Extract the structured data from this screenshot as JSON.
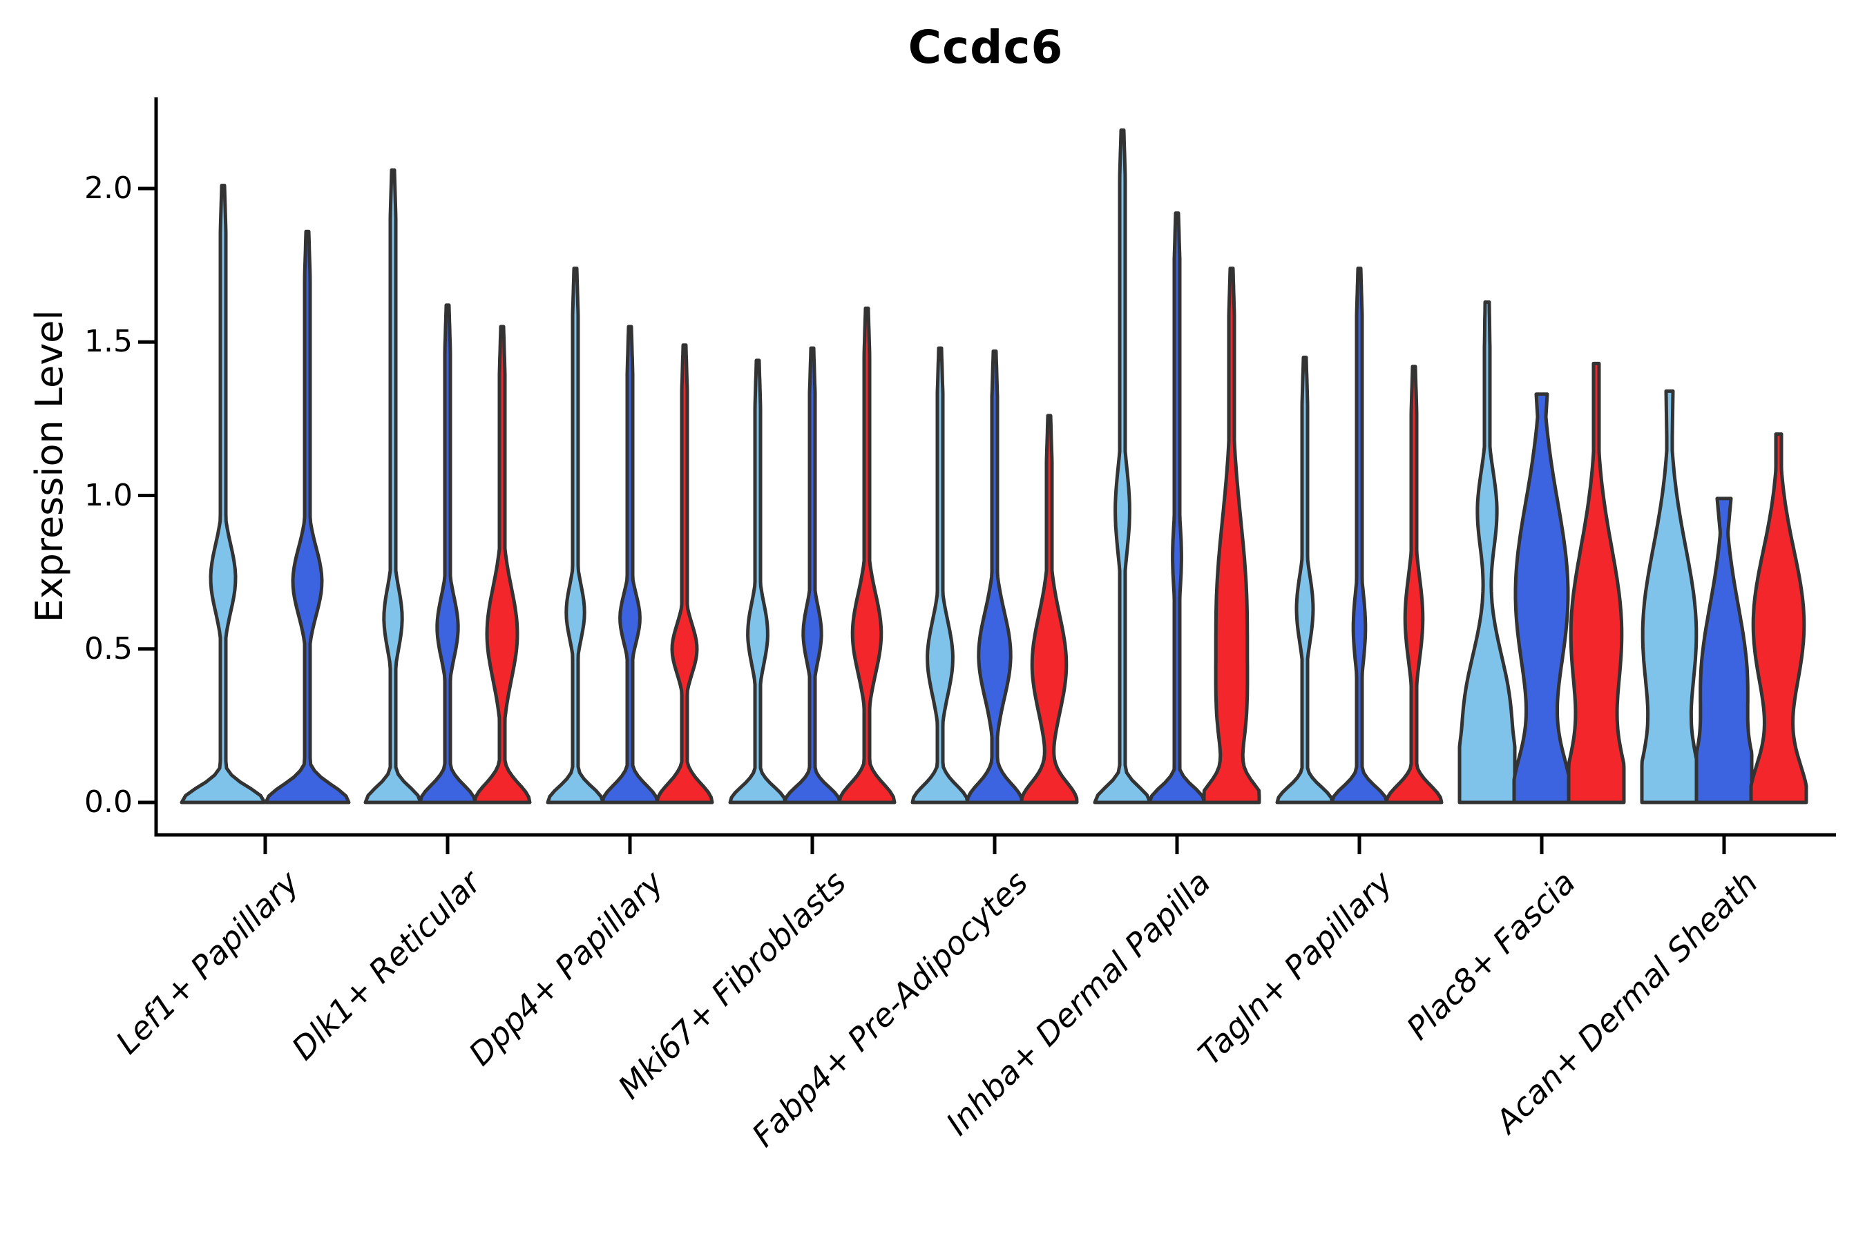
{
  "chart_data": {
    "type": "violin",
    "title": "Ccdc6",
    "ylabel": "Expression Level",
    "xlabel": "",
    "y_ticks": [
      "0.0",
      "0.5",
      "1.0",
      "1.5",
      "2.0"
    ],
    "y_tick_values": [
      0.0,
      0.5,
      1.0,
      1.5,
      2.0
    ],
    "ylim": [
      -0.11,
      2.3
    ],
    "grid": "off",
    "legend": "none",
    "categories": [
      "Lef1+ Papillary",
      "Dlk1+ Reticular",
      "Dpp4+ Papillary",
      "Mki67+ Fibroblasts",
      "Fabp4+ Pre-Adipocytes",
      "Inhba+ Dermal Papilla",
      "Tagln+ Papillary",
      "Plac8+ Fascia",
      "Acan+ Dermal Sheath"
    ],
    "colors": {
      "light_blue": "#7FC2EA",
      "dark_blue": "#3D64E0",
      "red": "#F2262B",
      "outline": "#333333",
      "axis": "#000000"
    },
    "groups": [
      {
        "label": "Lef1+ Papillary",
        "violins": [
          {
            "color": "light_blue",
            "max": 2.01,
            "base_sigma": 0.05,
            "bulges": [
              {
                "c": 0.73,
                "s": 0.11,
                "a": 0.3
              }
            ],
            "tip": 2
          },
          {
            "color": "dark_blue",
            "max": 1.86,
            "base_sigma": 0.055,
            "bulges": [
              {
                "c": 0.72,
                "s": 0.11,
                "a": 0.35
              }
            ],
            "tip": 2
          }
        ]
      },
      {
        "label": "Dlk1+ Reticular",
        "violins": [
          {
            "color": "light_blue",
            "max": 2.06,
            "base_sigma": 0.05,
            "bulges": [
              {
                "c": 0.6,
                "s": 0.1,
                "a": 0.33
              }
            ],
            "tip": 2
          },
          {
            "color": "dark_blue",
            "max": 1.62,
            "base_sigma": 0.055,
            "bulges": [
              {
                "c": 0.57,
                "s": 0.1,
                "a": 0.38
              }
            ],
            "tip": 2
          },
          {
            "color": "red",
            "max": 1.55,
            "base_sigma": 0.06,
            "bulges": [
              {
                "c": 0.55,
                "s": 0.15,
                "a": 0.55
              }
            ],
            "tip": 2
          }
        ]
      },
      {
        "label": "Dpp4+ Papillary",
        "violins": [
          {
            "color": "light_blue",
            "max": 1.74,
            "base_sigma": 0.05,
            "bulges": [
              {
                "c": 0.62,
                "s": 0.09,
                "a": 0.33
              }
            ],
            "tip": 2
          },
          {
            "color": "dark_blue",
            "max": 1.55,
            "base_sigma": 0.055,
            "bulges": [
              {
                "c": 0.6,
                "s": 0.08,
                "a": 0.36
              }
            ],
            "tip": 2
          },
          {
            "color": "red",
            "max": 1.49,
            "base_sigma": 0.06,
            "bulges": [
              {
                "c": 0.5,
                "s": 0.08,
                "a": 0.45
              }
            ],
            "tip": 2
          }
        ]
      },
      {
        "label": "Mki67+ Fibroblasts",
        "violins": [
          {
            "color": "light_blue",
            "max": 1.44,
            "base_sigma": 0.05,
            "bulges": [
              {
                "c": 0.55,
                "s": 0.1,
                "a": 0.36
              }
            ],
            "tip": 2
          },
          {
            "color": "dark_blue",
            "max": 1.48,
            "base_sigma": 0.05,
            "bulges": [
              {
                "c": 0.55,
                "s": 0.09,
                "a": 0.33
              }
            ],
            "tip": 2
          },
          {
            "color": "red",
            "max": 1.61,
            "base_sigma": 0.06,
            "bulges": [
              {
                "c": 0.55,
                "s": 0.13,
                "a": 0.52
              }
            ],
            "tip": 2
          }
        ]
      },
      {
        "label": "Fabp4+ Pre-Adipocytes",
        "violins": [
          {
            "color": "light_blue",
            "max": 1.48,
            "base_sigma": 0.055,
            "bulges": [
              {
                "c": 0.47,
                "s": 0.12,
                "a": 0.46
              }
            ],
            "tip": 2
          },
          {
            "color": "dark_blue",
            "max": 1.47,
            "base_sigma": 0.06,
            "bulges": [
              {
                "c": 0.48,
                "s": 0.14,
                "a": 0.58
              }
            ],
            "tip": 2
          },
          {
            "color": "red",
            "max": 1.26,
            "base_sigma": 0.065,
            "bulges": [
              {
                "c": 0.45,
                "s": 0.16,
                "a": 0.62
              }
            ],
            "tip": 2
          }
        ]
      },
      {
        "label": "Inhba+ Dermal Papilla",
        "violins": [
          {
            "color": "light_blue",
            "max": 2.19,
            "base_sigma": 0.05,
            "bulges": [
              {
                "c": 0.95,
                "s": 0.14,
                "a": 0.26
              }
            ],
            "tip": 2
          },
          {
            "color": "dark_blue",
            "max": 1.92,
            "base_sigma": 0.05,
            "bulges": [
              {
                "c": 0.8,
                "s": 0.13,
                "a": 0.16
              }
            ],
            "tip": 2
          },
          {
            "color": "red",
            "max": 1.74,
            "base_sigma": 0.06,
            "bulges": [
              {
                "c": 0.62,
                "s": 0.3,
                "a": 0.55
              },
              {
                "c": 0.25,
                "s": 0.15,
                "a": 0.25
              }
            ],
            "tip": 2
          }
        ]
      },
      {
        "label": "Tagln+ Papillary",
        "violins": [
          {
            "color": "light_blue",
            "max": 1.45,
            "base_sigma": 0.05,
            "bulges": [
              {
                "c": 0.63,
                "s": 0.11,
                "a": 0.3
              }
            ],
            "tip": 2
          },
          {
            "color": "dark_blue",
            "max": 1.74,
            "base_sigma": 0.05,
            "bulges": [
              {
                "c": 0.57,
                "s": 0.12,
                "a": 0.22
              }
            ],
            "tip": 2
          },
          {
            "color": "red",
            "max": 1.42,
            "base_sigma": 0.055,
            "bulges": [
              {
                "c": 0.6,
                "s": 0.14,
                "a": 0.32
              }
            ],
            "tip": 2
          }
        ]
      },
      {
        "label": "Plac8+ Fascia",
        "violins": [
          {
            "color": "light_blue",
            "max": 1.63,
            "base_sigma": 0.11,
            "bulges": [
              {
                "c": 0.28,
                "s": 0.2,
                "a": 0.85
              },
              {
                "c": 0.95,
                "s": 0.13,
                "a": 0.35
              }
            ],
            "tip": 3
          },
          {
            "color": "dark_blue",
            "max": 1.33,
            "base_sigma": 0.15,
            "bulges": [
              {
                "c": 0.68,
                "s": 0.3,
                "a": 0.95
              }
            ],
            "tip": 8
          },
          {
            "color": "red",
            "max": 1.43,
            "base_sigma": 0.15,
            "bulges": [
              {
                "c": 0.55,
                "s": 0.28,
                "a": 0.92
              }
            ],
            "tip": 4
          }
        ]
      },
      {
        "label": "Acan+ Dermal Sheath",
        "violins": [
          {
            "color": "light_blue",
            "max": 1.34,
            "base_sigma": 0.15,
            "bulges": [
              {
                "c": 0.55,
                "s": 0.28,
                "a": 0.97
              }
            ],
            "tip": 5
          },
          {
            "color": "dark_blue",
            "max": 0.99,
            "base_sigma": 0.12,
            "bulges": [
              {
                "c": 0.38,
                "s": 0.26,
                "a": 0.85
              }
            ],
            "tip": 10
          },
          {
            "color": "red",
            "max": 1.2,
            "base_sigma": 0.13,
            "bulges": [
              {
                "c": 0.58,
                "s": 0.24,
                "a": 0.92
              }
            ],
            "tip": 4
          }
        ]
      }
    ]
  }
}
